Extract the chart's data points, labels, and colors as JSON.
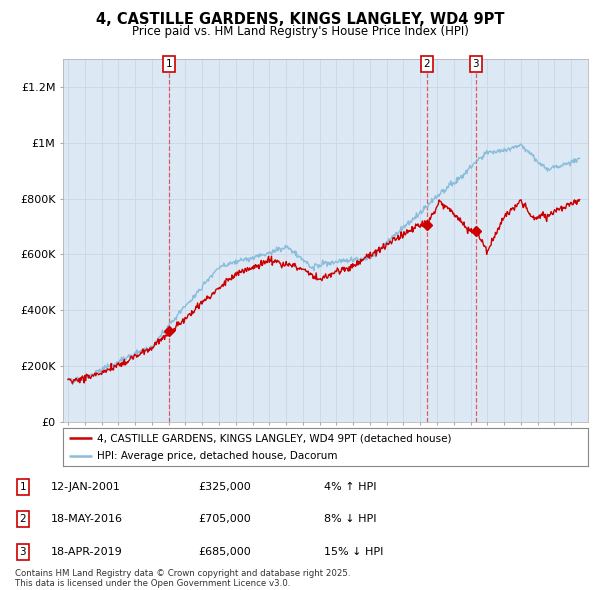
{
  "title": "4, CASTILLE GARDENS, KINGS LANGLEY, WD4 9PT",
  "subtitle": "Price paid vs. HM Land Registry's House Price Index (HPI)",
  "background_color": "#dce9f5",
  "ylim": [
    0,
    1300000
  ],
  "yticks": [
    0,
    200000,
    400000,
    600000,
    800000,
    1000000,
    1200000
  ],
  "ytick_labels": [
    "£0",
    "£200K",
    "£400K",
    "£600K",
    "£800K",
    "£1M",
    "£1.2M"
  ],
  "sale_dates": [
    2001.04,
    2016.38,
    2019.3
  ],
  "sale_prices": [
    325000,
    705000,
    685000
  ],
  "sale_labels": [
    "1",
    "2",
    "3"
  ],
  "sale_annotations": [
    {
      "label": "1",
      "date": "12-JAN-2001",
      "price": "£325,000",
      "hpi_diff": "4% ↑ HPI"
    },
    {
      "label": "2",
      "date": "18-MAY-2016",
      "price": "£705,000",
      "hpi_diff": "8% ↓ HPI"
    },
    {
      "label": "3",
      "date": "18-APR-2019",
      "price": "£685,000",
      "hpi_diff": "15% ↓ HPI"
    }
  ],
  "legend_line1": "4, CASTILLE GARDENS, KINGS LANGLEY, WD4 9PT (detached house)",
  "legend_line2": "HPI: Average price, detached house, Dacorum",
  "footer": "Contains HM Land Registry data © Crown copyright and database right 2025.\nThis data is licensed under the Open Government Licence v3.0.",
  "line_color": "#cc0000",
  "hpi_color": "#8bbcda",
  "vline_color": "#dd4444",
  "grid_color": "#c8d8e8",
  "xstart": 1995,
  "xend": 2025.5
}
